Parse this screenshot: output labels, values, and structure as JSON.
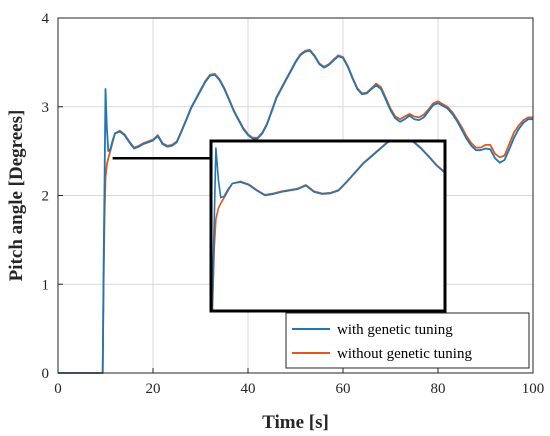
{
  "chart_data": {
    "type": "line",
    "title": "",
    "xlabel": "Time [s]",
    "ylabel": "Pitch angle [Degrees]",
    "xlim": [
      0,
      100
    ],
    "ylim": [
      0,
      4
    ],
    "xticks": [
      0,
      20,
      40,
      60,
      80,
      100
    ],
    "yticks": [
      0,
      1,
      2,
      3,
      4
    ],
    "x_tick_labels": [
      "0",
      "20",
      "40",
      "60",
      "80",
      "100"
    ],
    "y_tick_labels": [
      "0",
      "1",
      "2",
      "3",
      "4"
    ],
    "grid": true,
    "legend_position": "bottom-right",
    "colors": {
      "with": "#1f77b4",
      "without": "#e2571c",
      "axes": "#262626",
      "grid": "#d9d9d9"
    },
    "series": [
      {
        "name": "with genetic tuning",
        "x": [
          0,
          9.4,
          9.6,
          9.8,
          10.0,
          10.3,
          10.6,
          11.0,
          11.5,
          12,
          13,
          14,
          15,
          16,
          17,
          18,
          19,
          20,
          21,
          22,
          23,
          24,
          25,
          26,
          27,
          28,
          29,
          30,
          31,
          32,
          33,
          34,
          35,
          36,
          37,
          38,
          39,
          40,
          41,
          42,
          43,
          44,
          45,
          46,
          47,
          48,
          49,
          50,
          51,
          52,
          53,
          54,
          55,
          56,
          57,
          58,
          59,
          60,
          61,
          62,
          63,
          64,
          65,
          66,
          67,
          68,
          69,
          70,
          71,
          72,
          73,
          74,
          75,
          76,
          77,
          78,
          79,
          80,
          81,
          82,
          83,
          84,
          85,
          86,
          87,
          88,
          89,
          90,
          91,
          92,
          93,
          94,
          95,
          96,
          97,
          98,
          99,
          100
        ],
        "y": [
          0,
          0,
          1.2,
          2.2,
          3.2,
          2.75,
          2.5,
          2.52,
          2.62,
          2.7,
          2.72,
          2.68,
          2.6,
          2.53,
          2.55,
          2.58,
          2.6,
          2.62,
          2.67,
          2.58,
          2.55,
          2.56,
          2.6,
          2.72,
          2.85,
          2.98,
          3.08,
          3.18,
          3.28,
          3.35,
          3.36,
          3.3,
          3.2,
          3.08,
          2.95,
          2.85,
          2.75,
          2.68,
          2.64,
          2.64,
          2.7,
          2.8,
          2.95,
          3.1,
          3.2,
          3.3,
          3.4,
          3.5,
          3.58,
          3.62,
          3.63,
          3.57,
          3.48,
          3.44,
          3.47,
          3.52,
          3.57,
          3.55,
          3.45,
          3.32,
          3.2,
          3.14,
          3.15,
          3.2,
          3.24,
          3.2,
          3.08,
          2.96,
          2.87,
          2.83,
          2.86,
          2.9,
          2.86,
          2.85,
          2.88,
          2.95,
          3.02,
          3.04,
          3.01,
          2.98,
          2.92,
          2.84,
          2.74,
          2.64,
          2.56,
          2.51,
          2.51,
          2.53,
          2.52,
          2.42,
          2.37,
          2.4,
          2.52,
          2.65,
          2.75,
          2.82,
          2.86,
          2.86
        ]
      },
      {
        "name": "without genetic tuning",
        "x": [
          0,
          9.4,
          9.6,
          9.8,
          10.0,
          10.3,
          10.6,
          11.0,
          11.5,
          12,
          13,
          14,
          15,
          16,
          17,
          18,
          19,
          20,
          21,
          22,
          23,
          24,
          25,
          26,
          27,
          28,
          29,
          30,
          31,
          32,
          33,
          34,
          35,
          36,
          37,
          38,
          39,
          40,
          41,
          42,
          43,
          44,
          45,
          46,
          47,
          48,
          49,
          50,
          51,
          52,
          53,
          54,
          55,
          56,
          57,
          58,
          59,
          60,
          61,
          62,
          63,
          64,
          65,
          66,
          67,
          68,
          69,
          70,
          71,
          72,
          73,
          74,
          75,
          76,
          77,
          78,
          79,
          80,
          81,
          82,
          83,
          84,
          85,
          86,
          87,
          88,
          89,
          90,
          91,
          92,
          93,
          94,
          95,
          96,
          97,
          98,
          99,
          100
        ],
        "y": [
          0,
          0,
          1.0,
          1.8,
          2.2,
          2.35,
          2.42,
          2.5,
          2.6,
          2.7,
          2.73,
          2.69,
          2.61,
          2.54,
          2.56,
          2.59,
          2.61,
          2.63,
          2.68,
          2.59,
          2.56,
          2.57,
          2.61,
          2.73,
          2.86,
          2.99,
          3.09,
          3.19,
          3.29,
          3.36,
          3.37,
          3.31,
          3.21,
          3.09,
          2.96,
          2.86,
          2.76,
          2.69,
          2.65,
          2.65,
          2.71,
          2.81,
          2.96,
          3.11,
          3.21,
          3.31,
          3.41,
          3.51,
          3.59,
          3.63,
          3.64,
          3.58,
          3.49,
          3.45,
          3.48,
          3.53,
          3.58,
          3.56,
          3.46,
          3.33,
          3.21,
          3.15,
          3.16,
          3.21,
          3.26,
          3.22,
          3.1,
          2.98,
          2.89,
          2.86,
          2.89,
          2.92,
          2.89,
          2.88,
          2.91,
          2.97,
          3.04,
          3.06,
          3.03,
          3.0,
          2.94,
          2.86,
          2.77,
          2.67,
          2.59,
          2.54,
          2.54,
          2.57,
          2.57,
          2.47,
          2.43,
          2.45,
          2.58,
          2.71,
          2.79,
          2.85,
          2.88,
          2.88
        ]
      }
    ],
    "inset": {
      "xlim": [
        9.4,
        38
      ],
      "ylim": [
        0.9,
        3.3
      ],
      "pointer_anchor": [
        11.5,
        2.42
      ]
    }
  }
}
